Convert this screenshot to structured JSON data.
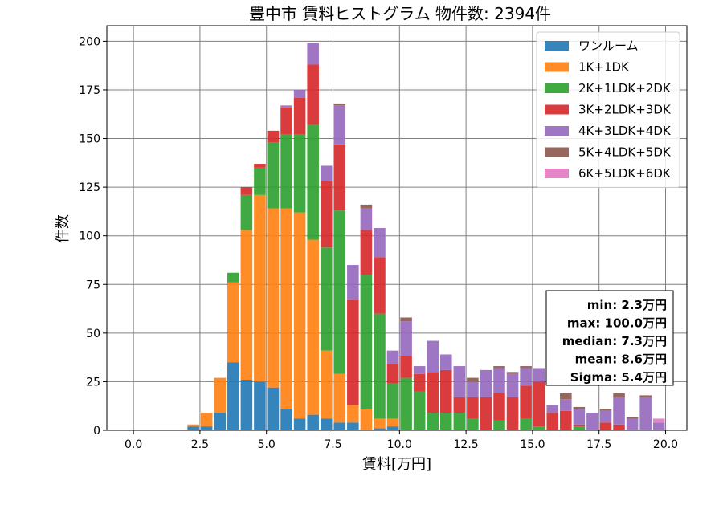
{
  "chart_data": {
    "type": "bar",
    "stacked": true,
    "title": "豊中市 賃料ヒストグラム 物件数: 2394件",
    "xlabel": "賃料[万円]",
    "ylabel": "件数",
    "xlim": [
      -1.0,
      20.8
    ],
    "ylim": [
      0,
      208
    ],
    "x_ticks": [
      "0.0",
      "2.5",
      "5.0",
      "7.5",
      "10.0",
      "12.5",
      "15.0",
      "17.5",
      "20.0"
    ],
    "y_ticks": [
      "0",
      "25",
      "50",
      "75",
      "100",
      "125",
      "150",
      "175",
      "200"
    ],
    "grid": true,
    "legend_position": "top-right",
    "bin_width": 0.5,
    "x": [
      2.0,
      2.5,
      3.0,
      3.5,
      4.0,
      4.5,
      5.0,
      5.5,
      6.0,
      6.5,
      7.0,
      7.5,
      8.0,
      8.5,
      9.0,
      9.5,
      10.0,
      10.5,
      11.0,
      11.5,
      12.0,
      12.5,
      13.0,
      13.5,
      14.0,
      14.5,
      15.0,
      15.5,
      16.0,
      16.5,
      17.0,
      17.5,
      18.0,
      18.5,
      19.0,
      19.5
    ],
    "series": [
      {
        "name": "ワンルーム",
        "color": "#1f77b4",
        "values": [
          2,
          2,
          9,
          35,
          26,
          25,
          22,
          11,
          6,
          8,
          6,
          4,
          4,
          0,
          1,
          2,
          0,
          0,
          0,
          0,
          0,
          0,
          0,
          0,
          0,
          0,
          0,
          0,
          0,
          0,
          0,
          0,
          0,
          0,
          0,
          0
        ]
      },
      {
        "name": "1K+1DK",
        "color": "#ff7f0e",
        "values": [
          1,
          7,
          18,
          41,
          77,
          96,
          92,
          103,
          106,
          90,
          35,
          25,
          9,
          11,
          5,
          4,
          0,
          0,
          0,
          0,
          0,
          0,
          0,
          0,
          0,
          0,
          0,
          0,
          0,
          0,
          0,
          0,
          0,
          0,
          0,
          0
        ]
      },
      {
        "name": "2K+1LDK+2DK",
        "color": "#2ca02c",
        "values": [
          0,
          0,
          0,
          5,
          18,
          14,
          34,
          38,
          40,
          59,
          53,
          84,
          0,
          69,
          54,
          18,
          27,
          20,
          9,
          9,
          9,
          6,
          0,
          5,
          0,
          6,
          2,
          0,
          0,
          2,
          0,
          0,
          0,
          0,
          0,
          0
        ]
      },
      {
        "name": "3K+2LDK+3DK",
        "color": "#d62728",
        "values": [
          0,
          0,
          0,
          0,
          4,
          2,
          6,
          14,
          19,
          31,
          34,
          34,
          54,
          23,
          29,
          10,
          11,
          9,
          21,
          22,
          8,
          11,
          17,
          14,
          17,
          17,
          23,
          9,
          10,
          1,
          0,
          4,
          3,
          0,
          0,
          0
        ]
      },
      {
        "name": "4K+3LDK+4DK",
        "color": "#9467bd",
        "values": [
          0,
          0,
          0,
          0,
          0,
          0,
          0,
          1,
          4,
          11,
          8,
          20,
          18,
          11,
          15,
          7,
          18,
          4,
          16,
          8,
          16,
          8,
          14,
          13,
          12,
          9,
          7,
          4,
          6,
          8,
          9,
          6,
          14,
          6,
          17,
          4
        ]
      },
      {
        "name": "5K+4LDK+5DK",
        "color": "#8c564b",
        "values": [
          0,
          0,
          0,
          0,
          0,
          0,
          0,
          0,
          0,
          0,
          0,
          1,
          0,
          2,
          0,
          0,
          2,
          0,
          0,
          0,
          0,
          2,
          0,
          1,
          1,
          1,
          0,
          0,
          3,
          1,
          0,
          1,
          2,
          1,
          1,
          0
        ]
      },
      {
        "name": "6K+5LDK+6DK",
        "color": "#e377c2",
        "values": [
          0,
          0,
          0,
          0,
          0,
          0,
          0,
          0,
          0,
          0,
          0,
          0,
          0,
          0,
          0,
          0,
          0,
          0,
          0,
          0,
          0,
          0,
          0,
          0,
          0,
          0,
          0,
          0,
          0,
          0,
          0,
          0,
          0,
          0,
          0,
          2
        ]
      }
    ],
    "stats_box": [
      "min: 2.3万円",
      "max: 100.0万円",
      "median: 7.3万円",
      "mean: 8.6万円",
      "Sigma: 5.4万円"
    ]
  }
}
